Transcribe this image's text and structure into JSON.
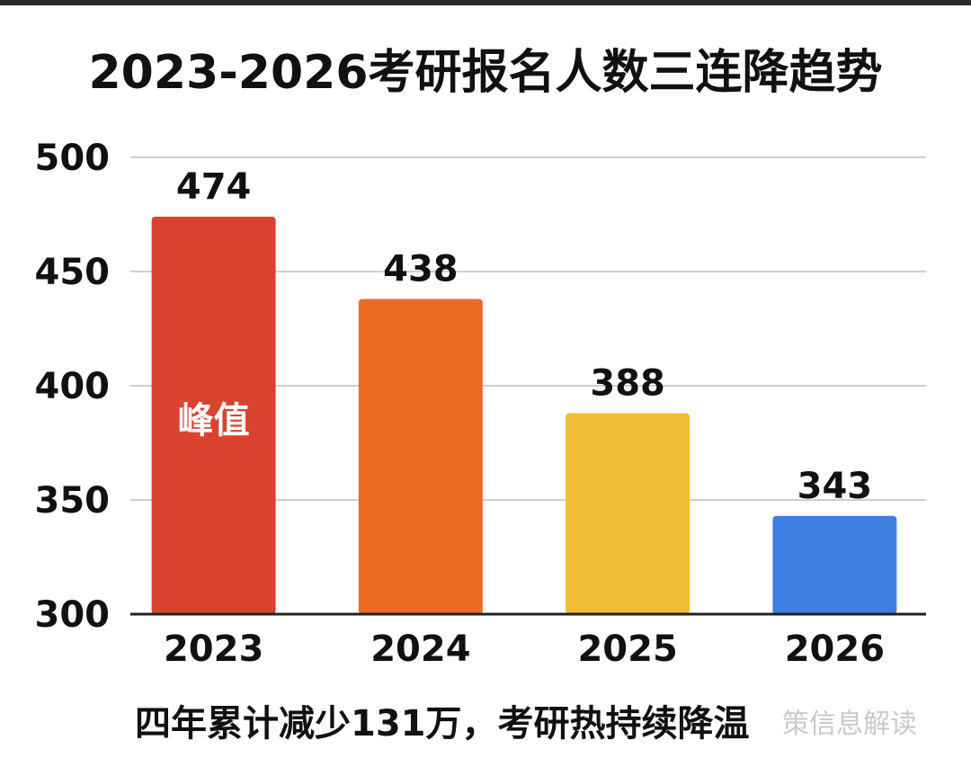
{
  "title": "2023-2026考研报名人数三连降趋势",
  "footer": "四年累计减少131万，考研热持续降温",
  "watermark": "策信息解读",
  "chart_data": {
    "type": "bar",
    "categories": [
      "2023",
      "2024",
      "2025",
      "2026"
    ],
    "values": [
      474,
      438,
      388,
      343
    ],
    "colors": [
      "#d9432f",
      "#ec6a24",
      "#f0be36",
      "#3d7ee3"
    ],
    "bar_annotations": [
      {
        "category": "2023",
        "text": "峰值"
      }
    ],
    "ylim": [
      300,
      500
    ],
    "yticks": [
      300,
      350,
      400,
      450,
      500
    ],
    "grid": true,
    "legend": "none"
  }
}
